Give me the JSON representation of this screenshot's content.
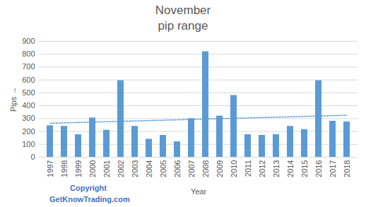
{
  "chart_data": {
    "type": "bar",
    "title": [
      "November",
      "pip range"
    ],
    "x_label": "Year",
    "y_label": "Pips",
    "annotations": [
      "Copyright",
      "GetKnowTrading.com"
    ],
    "categories": [
      "1997",
      "1998",
      "1999",
      "2000",
      "2001",
      "2002",
      "2003",
      "2004",
      "2005",
      "2006",
      "2007",
      "2008",
      "2009",
      "2010",
      "2011",
      "2012",
      "2013",
      "2014",
      "2015",
      "2016",
      "2017",
      "2018"
    ],
    "values": [
      245,
      240,
      175,
      305,
      210,
      595,
      240,
      140,
      170,
      120,
      300,
      820,
      320,
      480,
      175,
      170,
      175,
      240,
      215,
      595,
      280,
      275
    ],
    "color": "#5b9bd5",
    "ylim": [
      0,
      900
    ],
    "yticks": [
      0,
      100,
      200,
      300,
      400,
      500,
      600,
      700,
      800,
      900
    ],
    "grid": true
  }
}
